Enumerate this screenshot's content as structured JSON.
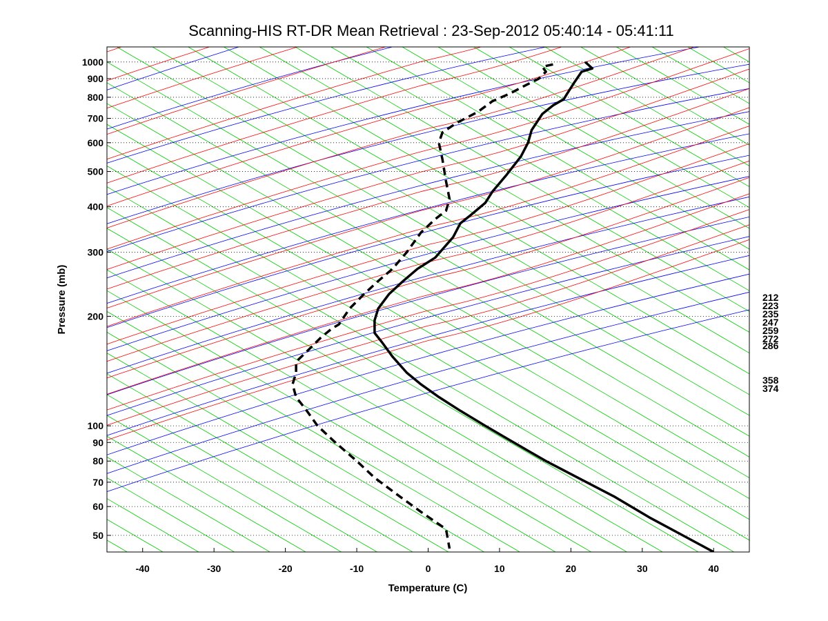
{
  "figure": {
    "title": "Scanning-HIS RT-DR Mean Retrieval : 23-Sep-2012 05:40:14 - 05:41:11"
  },
  "chart_data": {
    "type": "line",
    "title": "Scanning-HIS RT-DR Mean Retrieval : 23-Sep-2012 05:40:14 - 05:41:11",
    "xlabel": "Temperature (C)",
    "ylabel": "Pressure (mb)",
    "xlim": [
      -45,
      45
    ],
    "ylim": [
      1100,
      45
    ],
    "y_scale": "log",
    "grid": "horizontal dotted at pressure ticks",
    "x_ticks": [
      "-40",
      "-30",
      "-20",
      "-10",
      "0",
      "10",
      "20",
      "30",
      "40"
    ],
    "y_ticks": [
      "50",
      "60",
      "70",
      "80",
      "90",
      "100",
      "200",
      "300",
      "400",
      "500",
      "600",
      "700",
      "800",
      "900",
      "1000"
    ],
    "right_labels": [
      "212",
      "223",
      "235",
      "247",
      "259",
      "272",
      "286",
      "358",
      "374"
    ],
    "background_lines": {
      "dry_adiabats_color": "#ff0000",
      "moist_adiabats_color": "#0000ff",
      "isotherms_color": "#00cc00"
    },
    "series": [
      {
        "style": "solid",
        "color": "#000000",
        "points": [
          [
            22.0,
            1000
          ],
          [
            23.0,
            960
          ],
          [
            21.5,
            940
          ],
          [
            20.5,
            880
          ],
          [
            19.5,
            820
          ],
          [
            19.0,
            790
          ],
          [
            17.5,
            760
          ],
          [
            16.0,
            720
          ],
          [
            14.5,
            650
          ],
          [
            14.0,
            600
          ],
          [
            13.0,
            550
          ],
          [
            11.0,
            490
          ],
          [
            9.0,
            440
          ],
          [
            8.0,
            410
          ],
          [
            6.0,
            380
          ],
          [
            4.5,
            360
          ],
          [
            3.5,
            330
          ],
          [
            1.0,
            290
          ],
          [
            -1.5,
            270
          ],
          [
            -3.5,
            250
          ],
          [
            -5.5,
            230
          ],
          [
            -7.0,
            210
          ],
          [
            -7.5,
            195
          ],
          [
            -7.5,
            180
          ],
          [
            -6.5,
            170
          ],
          [
            -5.0,
            155
          ],
          [
            -3.0,
            140
          ],
          [
            -1.0,
            130
          ],
          [
            1.5,
            120
          ],
          [
            4.5,
            110
          ],
          [
            8.0,
            100
          ],
          [
            12.0,
            90
          ],
          [
            16.5,
            80
          ],
          [
            21.0,
            72
          ],
          [
            26.0,
            64
          ],
          [
            31.0,
            56
          ],
          [
            36.5,
            49
          ],
          [
            40.0,
            45
          ]
        ]
      },
      {
        "style": "dashed",
        "color": "#000000",
        "points": [
          [
            17.5,
            985
          ],
          [
            16.0,
            970
          ],
          [
            16.5,
            940
          ],
          [
            15.5,
            900
          ],
          [
            13.5,
            860
          ],
          [
            11.5,
            820
          ],
          [
            9.0,
            780
          ],
          [
            7.0,
            730
          ],
          [
            4.0,
            680
          ],
          [
            2.0,
            640
          ],
          [
            1.5,
            600
          ],
          [
            2.0,
            540
          ],
          [
            2.5,
            470
          ],
          [
            3.0,
            420
          ],
          [
            2.5,
            390
          ],
          [
            1.0,
            370
          ],
          [
            -1.0,
            340
          ],
          [
            -3.0,
            300
          ],
          [
            -5.0,
            270
          ],
          [
            -7.0,
            250
          ],
          [
            -9.0,
            230
          ],
          [
            -11.0,
            210
          ],
          [
            -12.5,
            190
          ],
          [
            -13.5,
            185
          ],
          [
            -15.0,
            175
          ],
          [
            -17.0,
            160
          ],
          [
            -18.5,
            150
          ],
          [
            -18.5,
            140
          ],
          [
            -19.0,
            130
          ],
          [
            -18.5,
            120
          ],
          [
            -17.0,
            110
          ],
          [
            -15.5,
            100
          ],
          [
            -13.0,
            90
          ],
          [
            -10.0,
            80
          ],
          [
            -7.5,
            72
          ],
          [
            -4.0,
            64
          ],
          [
            -1.0,
            58
          ],
          [
            2.5,
            52
          ],
          [
            3.0,
            46
          ]
        ]
      }
    ]
  }
}
